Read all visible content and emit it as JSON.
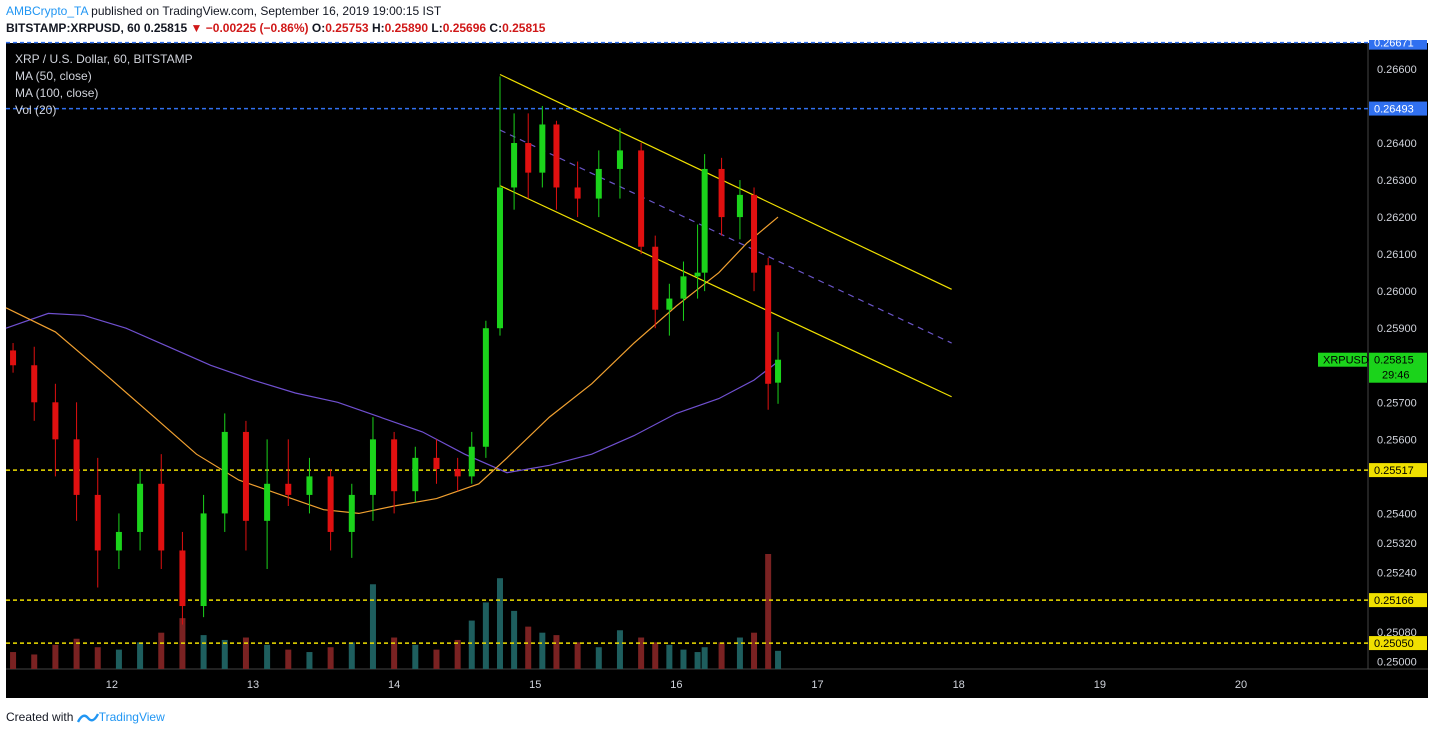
{
  "header": {
    "author": "AMBCrypto_TA",
    "published": "published on TradingView.com, September 16, 2019 19:00:15 IST",
    "symbol": "BITSTAMP:XRPUSD, 60",
    "last": "0.25815",
    "change": "−0.00225 (−0.86%)",
    "o_label": "O:",
    "o_val": "0.25753",
    "h_label": "H:",
    "h_val": "0.25890",
    "l_label": "L:",
    "l_val": "0.25696",
    "c_label": "C:",
    "c_val": "0.25815"
  },
  "legend": [
    "XRP / U.S. Dollar, 60, BITSTAMP",
    "MA (50, close)",
    "MA (100, close)",
    "Vol (20)"
  ],
  "footer": {
    "created_with": "Created with",
    "brand": "TradingView"
  },
  "colors": {
    "background": "#000000",
    "up": "#1bd31b",
    "down": "#e01010",
    "vol_up": "#1e5e5e",
    "vol_down": "#7a2222",
    "ma50": "#f0a030",
    "ma100": "#7050d0",
    "channel": "#f0e000",
    "support": "#f0e000",
    "resistance": "#3070f0"
  },
  "chart_data": {
    "type": "candlestick",
    "ylim": [
      0.2498,
      0.2667
    ],
    "y_ticks": [
      "0.26600",
      "0.26400",
      "0.26300",
      "0.26200",
      "0.26100",
      "0.26000",
      "0.25900",
      "0.25700",
      "0.25600",
      "0.25400",
      "0.25320",
      "0.25240",
      "0.25080",
      "0.25000"
    ],
    "x_ticks": [
      {
        "t": 12,
        "label": "12"
      },
      {
        "t": 13,
        "label": "13"
      },
      {
        "t": 14,
        "label": "14"
      },
      {
        "t": 15,
        "label": "15"
      },
      {
        "t": 16,
        "label": "16"
      },
      {
        "t": 17,
        "label": "17"
      },
      {
        "t": 18,
        "label": "18"
      },
      {
        "t": 19,
        "label": "19"
      },
      {
        "t": 20,
        "label": "20"
      }
    ],
    "xlim": [
      11.25,
      20.9
    ],
    "horizontal_lines": [
      {
        "price": 0.26671,
        "label": "0.26671",
        "type": "resistance"
      },
      {
        "price": 0.26493,
        "label": "0.26493",
        "type": "resistance"
      },
      {
        "price": 0.25517,
        "label": "0.25517",
        "type": "support"
      },
      {
        "price": 0.25166,
        "label": "0.25166",
        "type": "support"
      },
      {
        "price": 0.2505,
        "label": "0.25050",
        "type": "support"
      }
    ],
    "last_price": {
      "symbol": "XRPUSD",
      "price": "0.25815",
      "countdown": "29:46",
      "value": 0.25815
    },
    "channel": {
      "upper": [
        [
          14.75,
          0.26585
        ],
        [
          17.95,
          0.26005
        ]
      ],
      "lower": [
        [
          14.75,
          0.26285
        ],
        [
          17.95,
          0.25715
        ]
      ],
      "mid": [
        [
          14.75,
          0.26435
        ],
        [
          17.95,
          0.2586
        ]
      ]
    },
    "ma50": [
      [
        11.25,
        0.25955
      ],
      [
        11.6,
        0.2589
      ],
      [
        12.0,
        0.2576
      ],
      [
        12.3,
        0.2566
      ],
      [
        12.6,
        0.2556
      ],
      [
        12.9,
        0.2549
      ],
      [
        13.2,
        0.2545
      ],
      [
        13.5,
        0.2541
      ],
      [
        13.75,
        0.254
      ],
      [
        14.0,
        0.2542
      ],
      [
        14.3,
        0.2544
      ],
      [
        14.6,
        0.2548
      ],
      [
        14.8,
        0.2555
      ],
      [
        15.1,
        0.2566
      ],
      [
        15.4,
        0.2575
      ],
      [
        15.7,
        0.2586
      ],
      [
        16.0,
        0.2596
      ],
      [
        16.3,
        0.2605
      ],
      [
        16.5,
        0.2613
      ],
      [
        16.72,
        0.262
      ]
    ],
    "ma100": [
      [
        11.25,
        0.259
      ],
      [
        11.55,
        0.2594
      ],
      [
        11.8,
        0.25935
      ],
      [
        12.1,
        0.259
      ],
      [
        12.4,
        0.2585
      ],
      [
        12.7,
        0.258
      ],
      [
        13.0,
        0.2576
      ],
      [
        13.3,
        0.25725
      ],
      [
        13.6,
        0.257
      ],
      [
        13.9,
        0.2566
      ],
      [
        14.2,
        0.2562
      ],
      [
        14.5,
        0.2556
      ],
      [
        14.8,
        0.2551
      ],
      [
        15.1,
        0.2553
      ],
      [
        15.4,
        0.2556
      ],
      [
        15.7,
        0.2561
      ],
      [
        16.0,
        0.2567
      ],
      [
        16.3,
        0.2571
      ],
      [
        16.55,
        0.2576
      ],
      [
        16.72,
        0.2581
      ]
    ],
    "candles": [
      {
        "t": 11.3,
        "o": 0.2584,
        "h": 0.2586,
        "l": 0.2578,
        "c": 0.258,
        "v": 14
      },
      {
        "t": 11.45,
        "o": 0.258,
        "h": 0.2585,
        "l": 0.2565,
        "c": 0.257,
        "v": 12
      },
      {
        "t": 11.6,
        "o": 0.257,
        "h": 0.2575,
        "l": 0.255,
        "c": 0.256,
        "v": 20
      },
      {
        "t": 11.75,
        "o": 0.256,
        "h": 0.257,
        "l": 0.2538,
        "c": 0.2545,
        "v": 25
      },
      {
        "t": 11.9,
        "o": 0.2545,
        "h": 0.2555,
        "l": 0.252,
        "c": 0.253,
        "v": 18
      },
      {
        "t": 12.05,
        "o": 0.253,
        "h": 0.254,
        "l": 0.2525,
        "c": 0.2535,
        "v": 16
      },
      {
        "t": 12.2,
        "o": 0.2535,
        "h": 0.2552,
        "l": 0.253,
        "c": 0.2548,
        "v": 22
      },
      {
        "t": 12.35,
        "o": 0.2548,
        "h": 0.2556,
        "l": 0.2525,
        "c": 0.253,
        "v": 30
      },
      {
        "t": 12.5,
        "o": 0.253,
        "h": 0.2535,
        "l": 0.251,
        "c": 0.2515,
        "v": 42
      },
      {
        "t": 12.65,
        "o": 0.2515,
        "h": 0.2545,
        "l": 0.2512,
        "c": 0.254,
        "v": 28
      },
      {
        "t": 12.8,
        "o": 0.254,
        "h": 0.2567,
        "l": 0.2535,
        "c": 0.2562,
        "v": 24
      },
      {
        "t": 12.95,
        "o": 0.2562,
        "h": 0.2565,
        "l": 0.253,
        "c": 0.2538,
        "v": 26
      },
      {
        "t": 13.1,
        "o": 0.2538,
        "h": 0.256,
        "l": 0.2525,
        "c": 0.2548,
        "v": 20
      },
      {
        "t": 13.25,
        "o": 0.2548,
        "h": 0.256,
        "l": 0.2542,
        "c": 0.2545,
        "v": 16
      },
      {
        "t": 13.4,
        "o": 0.2545,
        "h": 0.2555,
        "l": 0.254,
        "c": 0.255,
        "v": 14
      },
      {
        "t": 13.55,
        "o": 0.255,
        "h": 0.2552,
        "l": 0.253,
        "c": 0.2535,
        "v": 18
      },
      {
        "t": 13.7,
        "o": 0.2535,
        "h": 0.2548,
        "l": 0.2528,
        "c": 0.2545,
        "v": 22
      },
      {
        "t": 13.85,
        "o": 0.2545,
        "h": 0.2566,
        "l": 0.2538,
        "c": 0.256,
        "v": 70
      },
      {
        "t": 14.0,
        "o": 0.256,
        "h": 0.2562,
        "l": 0.254,
        "c": 0.2546,
        "v": 26
      },
      {
        "t": 14.15,
        "o": 0.2546,
        "h": 0.2558,
        "l": 0.2543,
        "c": 0.2555,
        "v": 20
      },
      {
        "t": 14.3,
        "o": 0.2555,
        "h": 0.256,
        "l": 0.2548,
        "c": 0.2552,
        "v": 16
      },
      {
        "t": 14.45,
        "o": 0.2552,
        "h": 0.2555,
        "l": 0.2546,
        "c": 0.255,
        "v": 24
      },
      {
        "t": 14.55,
        "o": 0.255,
        "h": 0.2562,
        "l": 0.2548,
        "c": 0.2558,
        "v": 40
      },
      {
        "t": 14.65,
        "o": 0.2558,
        "h": 0.2592,
        "l": 0.2555,
        "c": 0.259,
        "v": 55
      },
      {
        "t": 14.75,
        "o": 0.259,
        "h": 0.2658,
        "l": 0.2588,
        "c": 0.2628,
        "v": 75
      },
      {
        "t": 14.85,
        "o": 0.2628,
        "h": 0.2648,
        "l": 0.2622,
        "c": 0.264,
        "v": 48
      },
      {
        "t": 14.95,
        "o": 0.264,
        "h": 0.2648,
        "l": 0.2625,
        "c": 0.2632,
        "v": 35
      },
      {
        "t": 15.05,
        "o": 0.2632,
        "h": 0.265,
        "l": 0.2628,
        "c": 0.2645,
        "v": 30
      },
      {
        "t": 15.15,
        "o": 0.2645,
        "h": 0.2646,
        "l": 0.2622,
        "c": 0.2628,
        "v": 28
      },
      {
        "t": 15.3,
        "o": 0.2628,
        "h": 0.2635,
        "l": 0.262,
        "c": 0.2625,
        "v": 22
      },
      {
        "t": 15.45,
        "o": 0.2625,
        "h": 0.2638,
        "l": 0.262,
        "c": 0.2633,
        "v": 18
      },
      {
        "t": 15.6,
        "o": 0.2633,
        "h": 0.2644,
        "l": 0.2625,
        "c": 0.2638,
        "v": 32
      },
      {
        "t": 15.75,
        "o": 0.2638,
        "h": 0.264,
        "l": 0.261,
        "c": 0.2612,
        "v": 26
      },
      {
        "t": 15.85,
        "o": 0.2612,
        "h": 0.2615,
        "l": 0.259,
        "c": 0.2595,
        "v": 22
      },
      {
        "t": 15.95,
        "o": 0.2595,
        "h": 0.2602,
        "l": 0.2588,
        "c": 0.2598,
        "v": 20
      },
      {
        "t": 16.05,
        "o": 0.2598,
        "h": 0.2608,
        "l": 0.2592,
        "c": 0.2604,
        "v": 16
      },
      {
        "t": 16.15,
        "o": 0.2604,
        "h": 0.2618,
        "l": 0.2598,
        "c": 0.2605,
        "v": 14
      },
      {
        "t": 16.2,
        "o": 0.2605,
        "h": 0.2637,
        "l": 0.26,
        "c": 0.2633,
        "v": 18
      },
      {
        "t": 16.32,
        "o": 0.2633,
        "h": 0.2636,
        "l": 0.2615,
        "c": 0.262,
        "v": 22
      },
      {
        "t": 16.45,
        "o": 0.262,
        "h": 0.263,
        "l": 0.2614,
        "c": 0.2626,
        "v": 26
      },
      {
        "t": 16.55,
        "o": 0.2626,
        "h": 0.2628,
        "l": 0.26,
        "c": 0.2605,
        "v": 30
      },
      {
        "t": 16.65,
        "o": 0.2607,
        "h": 0.2609,
        "l": 0.2568,
        "c": 0.2575,
        "v": 95
      },
      {
        "t": 16.72,
        "o": 0.25753,
        "h": 0.2589,
        "l": 0.25696,
        "c": 0.25815,
        "v": 15
      }
    ]
  }
}
